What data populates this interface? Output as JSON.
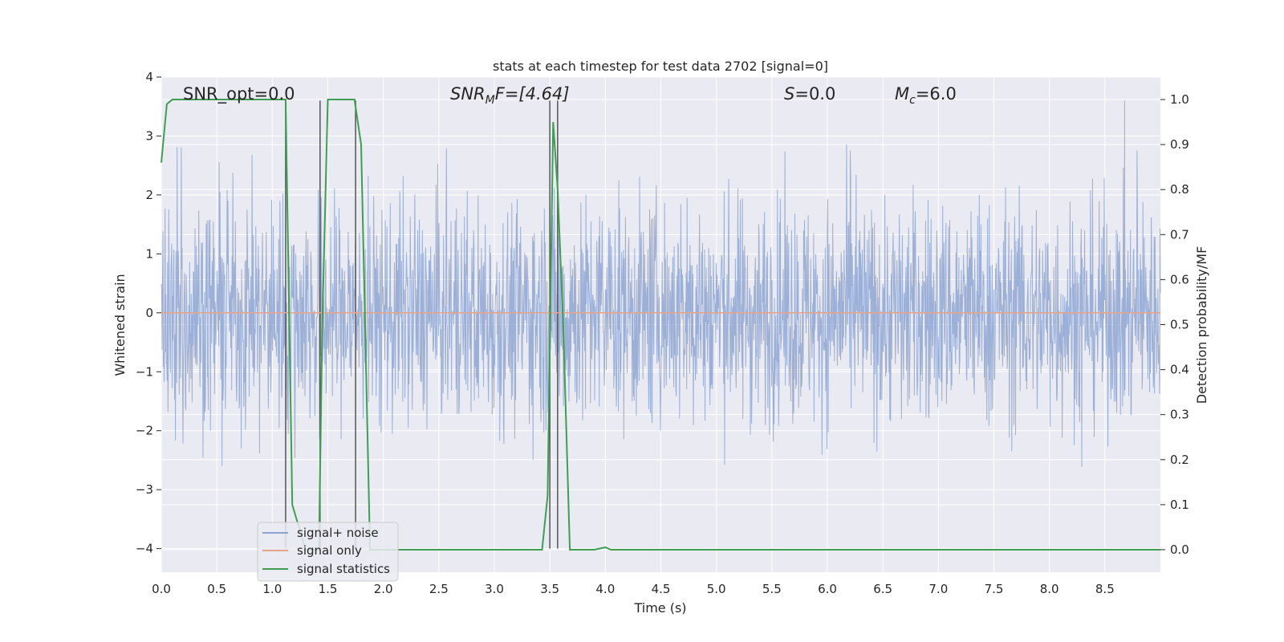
{
  "chart_data": {
    "type": "line",
    "title": "stats at each timestep for test data 2702 [signal=0]",
    "xlabel": "Time (s)",
    "ylabel_left": "Whitened strain",
    "ylabel_right": "Detection probability/MF",
    "xlim": [
      0,
      9
    ],
    "ylim_left": [
      -4.4,
      4
    ],
    "ylim_right": [
      -0.05,
      1.05
    ],
    "x_ticks": [
      "0.0",
      "0.5",
      "1.0",
      "1.5",
      "2.0",
      "2.5",
      "3.0",
      "3.5",
      "4.0",
      "4.5",
      "5.0",
      "5.5",
      "6.0",
      "6.5",
      "7.0",
      "7.5",
      "8.0",
      "8.5"
    ],
    "y_ticks_left": [
      "4",
      "3",
      "2",
      "1",
      "0",
      "−1",
      "−2",
      "−3",
      "−4"
    ],
    "y_ticks_right": [
      "1.0",
      "0.9",
      "0.8",
      "0.7",
      "0.6",
      "0.5",
      "0.4",
      "0.3",
      "0.2",
      "0.1",
      "0.0"
    ],
    "grid": true,
    "legend_position": "lower-left",
    "annotations": {
      "snr_opt": "SNR_opt=0.0",
      "snr_mf_prefix": "SNR",
      "snr_mf_sub": "M",
      "snr_mf_suffix": "F=[4.64]",
      "s_var": "S",
      "s_val": "=0.0",
      "mc_var": "M",
      "mc_sub": "c",
      "mc_val": "=6.0"
    },
    "series": [
      {
        "name": "signal+ noise",
        "color": "#8ea5d1",
        "axis": "left",
        "description_range": [
          -4.0,
          3.6
        ]
      },
      {
        "name": "signal only",
        "color": "#e8a48a",
        "axis": "left",
        "x": [
          0,
          9
        ],
        "y": [
          0,
          0
        ]
      },
      {
        "name": "signal statistics",
        "color": "#3f9e52",
        "axis": "right",
        "x": [
          0.0,
          0.05,
          0.1,
          0.15,
          1.05,
          1.12,
          1.18,
          1.3,
          1.42,
          1.45,
          1.5,
          1.55,
          1.74,
          1.8,
          1.88,
          2.0,
          2.5,
          3.0,
          3.43,
          3.48,
          3.53,
          3.57,
          3.62,
          3.68,
          3.75,
          3.9,
          4.0,
          4.05,
          4.1,
          5.0,
          7.5,
          9.0
        ],
        "y": [
          0.86,
          0.99,
          1.0,
          1.0,
          1.0,
          1.0,
          0.1,
          0.0,
          0.0,
          0.5,
          1.0,
          1.0,
          1.0,
          0.9,
          0.0,
          0.0,
          0.0,
          0.0,
          0.0,
          0.12,
          0.95,
          0.8,
          0.5,
          0.0,
          0.0,
          0.0,
          0.005,
          0.0,
          0.0,
          0.0,
          0.0,
          0.0
        ]
      }
    ],
    "vertical_markers_x": [
      1.12,
      1.43,
      1.75,
      3.5,
      3.57
    ],
    "legend": [
      "signal+ noise",
      "signal only",
      "signal statistics"
    ]
  }
}
